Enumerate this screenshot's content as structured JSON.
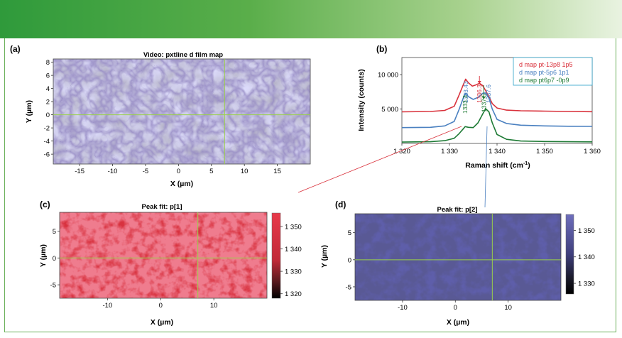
{
  "colors": {
    "red": "#d9313b",
    "blue": "#4a80c0",
    "green": "#1d7a34",
    "crosshair": "#9ad04a",
    "legend_border": "#29a0c8"
  },
  "panel_a": {
    "label": "(a)",
    "title": "Video: pxtline d film map",
    "xlabel": "X (µm)",
    "ylabel": "Y (µm)",
    "xticks": [
      "-15",
      "-10",
      "-5",
      "0",
      "5",
      "10",
      "15"
    ],
    "yticks": [
      "-6",
      "-4",
      "-2",
      "0",
      "2",
      "4",
      "6",
      "8"
    ]
  },
  "panel_b": {
    "label": "(b)",
    "xlabel": "Raman shift (cm",
    "xlabel_sup": "-1",
    "xlabel_end": ")",
    "ylabel": "Intensity (counts)"
  },
  "panel_c": {
    "label": "(c)",
    "title": "Peak fit: p[1]",
    "xlabel": "X (µm)",
    "ylabel": "Y (µm)",
    "xticks": [
      "-10",
      "0",
      "10"
    ],
    "yticks": [
      "-5",
      "0",
      "5"
    ],
    "cbar_ticks": [
      "1 350",
      "1 340",
      "1 330",
      "1 320"
    ]
  },
  "panel_d": {
    "label": "(d)",
    "title": "Peak fit: p[2]",
    "xlabel": "X (µm)",
    "ylabel": "Y (µm)",
    "xticks": [
      "-10",
      "0",
      "10"
    ],
    "yticks": [
      "-5",
      "0",
      "5"
    ],
    "cbar_ticks": [
      "1 350",
      "1 340",
      "1 330"
    ]
  },
  "chart_data": [
    {
      "type": "image",
      "panel": "a",
      "title": "Video: pxtline d film map",
      "xlabel": "X (µm)",
      "ylabel": "Y (µm)",
      "xlim": [
        -19,
        20
      ],
      "ylim": [
        8.5,
        -7.5
      ],
      "crosshair": {
        "x": 7,
        "y": 0
      }
    },
    {
      "type": "line",
      "panel": "b",
      "xlabel": "Raman shift (cm-1)",
      "ylabel": "Intensity (counts)",
      "xlim": [
        1320,
        1360
      ],
      "ylim": [
        0,
        12500
      ],
      "xticks": [
        1320,
        1330,
        1340,
        1350,
        1360
      ],
      "xtick_labels": [
        "1 320",
        "1 330",
        "1 340",
        "1 350",
        "1 360"
      ],
      "yticks": [
        5000,
        10000
      ],
      "ytick_labels": [
        "5 000",
        "10 000"
      ],
      "series": [
        {
          "name": "d map pt-13p8 1p5",
          "color": "#d9313b",
          "x": [
            1320,
            1326,
            1329,
            1331,
            1332,
            1333,
            1333.4,
            1334,
            1334.8,
            1335.5,
            1336.3,
            1337,
            1337.6,
            1338.3,
            1339,
            1340,
            1342,
            1345,
            1350,
            1355,
            1360
          ],
          "y": [
            4600,
            4650,
            4800,
            5400,
            7000,
            8700,
            9350,
            8800,
            8350,
            8500,
            8750,
            8400,
            7700,
            6800,
            5800,
            5150,
            4850,
            4750,
            4700,
            4650,
            4620
          ]
        },
        {
          "name": "d map pt-5p6 1p1",
          "color": "#4a80c0",
          "x": [
            1320,
            1326,
            1329,
            1331,
            1332,
            1333,
            1333.4,
            1334,
            1335,
            1336,
            1337,
            1337.6,
            1338.3,
            1339,
            1340,
            1342,
            1345,
            1350,
            1355,
            1360
          ],
          "y": [
            2300,
            2350,
            2550,
            3200,
            4900,
            6800,
            7300,
            6800,
            6400,
            6700,
            7300,
            7350,
            6600,
            5000,
            3500,
            2900,
            2650,
            2550,
            2500,
            2480
          ]
        },
        {
          "name": "d map pt6p7 -0p9",
          "color": "#1d7a34",
          "x": [
            1320,
            1326,
            1329,
            1331,
            1332,
            1333,
            1333.3,
            1334,
            1335,
            1336,
            1337,
            1337.6,
            1338.3,
            1339,
            1340,
            1342,
            1345,
            1350,
            1355,
            1360
          ],
          "y": [
            200,
            250,
            400,
            750,
            1400,
            2200,
            2450,
            2350,
            2300,
            3000,
            4300,
            5050,
            4600,
            3000,
            1300,
            600,
            350,
            280,
            250,
            230
          ]
        }
      ],
      "annotations": [
        {
          "text": "1333.43",
          "x": 1333.43,
          "color": "#4a80c0"
        },
        {
          "text": "1336.3",
          "x": 1336.3,
          "color": "#d9313b"
        },
        {
          "text": "1337.6",
          "x": 1337.6,
          "color": "#4a80c0"
        },
        {
          "text": "1337.5",
          "x": 1337.5,
          "color": "#1d7a34"
        },
        {
          "text": "1333.3",
          "x": 1333.3,
          "color": "#1d7a34"
        }
      ],
      "legend_position": "top-right"
    },
    {
      "type": "heatmap",
      "panel": "c",
      "title": "Peak fit: p[1]",
      "colormap": "black-to-red",
      "clim": [
        1318,
        1356
      ],
      "xlabel": "X (µm)",
      "ylabel": "Y (µm)",
      "xlim": [
        -19,
        20
      ],
      "ylim": [
        8.5,
        -7.5
      ],
      "crosshair": {
        "x": 7,
        "y": 0
      }
    },
    {
      "type": "heatmap",
      "panel": "d",
      "title": "Peak fit: p[2]",
      "colormap": "black-to-blue",
      "clim": [
        1326,
        1356
      ],
      "xlabel": "X (µm)",
      "ylabel": "Y (µm)",
      "xlim": [
        -19,
        20
      ],
      "ylim": [
        8.5,
        -7.5
      ],
      "crosshair": {
        "x": 7,
        "y": 0
      }
    }
  ]
}
